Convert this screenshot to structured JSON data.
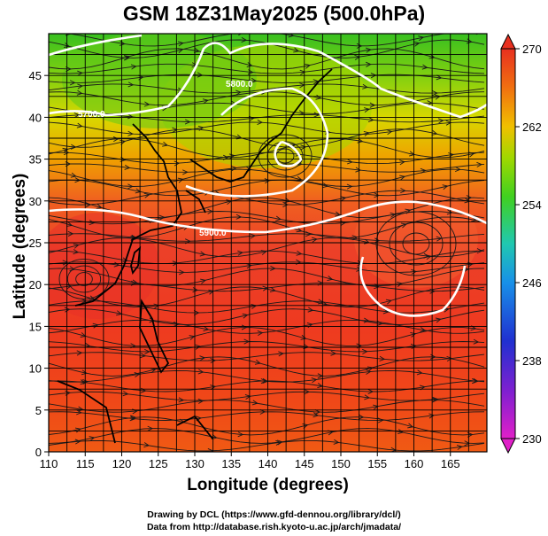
{
  "title": "GSM 18Z31May2025 (500.0hPa)",
  "axes": {
    "xlabel": "Longitude (degrees)",
    "ylabel": "Latitude  (degrees)",
    "x_ticks": [
      "110",
      "115",
      "120",
      "125",
      "130",
      "135",
      "140",
      "145",
      "150",
      "155",
      "160",
      "165"
    ],
    "y_ticks": [
      "0",
      "5",
      "10",
      "15",
      "20",
      "25",
      "30",
      "35",
      "40",
      "45"
    ],
    "x_range": [
      110,
      170
    ],
    "y_range": [
      0,
      50
    ]
  },
  "colorbar": {
    "labels": [
      "230",
      "238",
      "246",
      "254",
      "262",
      "270"
    ],
    "range": [
      230,
      270
    ],
    "colors": {
      "low": "#e020c0",
      "mid_low": "#2030d0",
      "mid": "#20a8e0",
      "mid_high": "#40d020",
      "high_mid": "#f0b000",
      "high": "#e83020"
    }
  },
  "contours": [
    {
      "label": "5700.0"
    },
    {
      "label": "5800.0"
    },
    {
      "label": "5900.0"
    }
  ],
  "credits": {
    "line1": "Drawing by DCL (https://www.gfd-dennou.org/library/dcl/)",
    "line2": "Data from http://database.rish.kyoto-u.ac.jp/arch/jmadata/"
  },
  "map_type": "temperature shading with wind streamlines and geopotential height contours",
  "region": "Western North Pacific / East Asia"
}
